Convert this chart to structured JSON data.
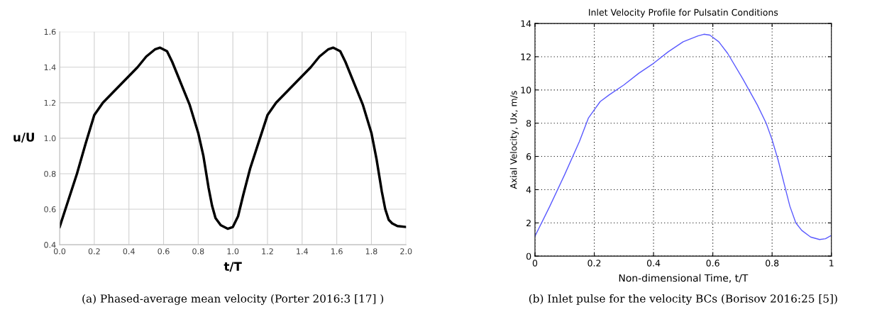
{
  "chart_data": [
    {
      "type": "line",
      "xlabel": "t/T",
      "ylabel": "u/U",
      "xlim": [
        0,
        2
      ],
      "ylim": [
        0.4,
        1.6
      ],
      "xticks": [
        {
          "value": 0,
          "label": "0.0"
        },
        0.2,
        0.4,
        0.6,
        0.8,
        {
          "value": 1,
          "label": "1.0"
        },
        1.2,
        1.4,
        1.6,
        1.8,
        {
          "value": 2,
          "label": "2.0"
        }
      ],
      "yticks": [
        0.4,
        0.6,
        0.8,
        {
          "value": 1,
          "label": "1.0"
        },
        1.2,
        1.4,
        1.6
      ],
      "grid": true,
      "series": [
        {
          "color": "#000000",
          "x": [
            0,
            0.05,
            0.1,
            0.15,
            0.2,
            0.25,
            0.3,
            0.35,
            0.4,
            0.45,
            0.5,
            0.55,
            0.58,
            0.62,
            0.65,
            0.7,
            0.75,
            0.8,
            0.83,
            0.86,
            0.88,
            0.9,
            0.93,
            0.97,
            1.0,
            1.03,
            1.06,
            1.1,
            1.15,
            1.2,
            1.25,
            1.3,
            1.35,
            1.4,
            1.45,
            1.5,
            1.55,
            1.58,
            1.62,
            1.65,
            1.7,
            1.75,
            1.8,
            1.83,
            1.86,
            1.88,
            1.9,
            1.92,
            1.95,
            2.0
          ],
          "values": [
            0.5,
            0.65,
            0.8,
            0.97,
            1.13,
            1.2,
            1.25,
            1.3,
            1.35,
            1.4,
            1.46,
            1.5,
            1.51,
            1.49,
            1.43,
            1.31,
            1.19,
            1.03,
            0.9,
            0.72,
            0.62,
            0.55,
            0.51,
            0.49,
            0.5,
            0.56,
            0.68,
            0.83,
            0.98,
            1.13,
            1.2,
            1.25,
            1.3,
            1.35,
            1.4,
            1.46,
            1.5,
            1.51,
            1.49,
            1.43,
            1.31,
            1.19,
            1.03,
            0.88,
            0.7,
            0.6,
            0.54,
            0.52,
            0.505,
            0.5
          ]
        }
      ],
      "annotations": [
        "(a) Phased-average mean velocity (Porter 2016:3 [17] )"
      ]
    },
    {
      "type": "line",
      "title": "Inlet Velocity Profile for Pulsatin Conditions",
      "xlabel": "Non-dimensional Time, t/T",
      "ylabel": "Axial Velocity, Ux, m/s",
      "xlim": [
        0,
        1
      ],
      "ylim": [
        0,
        14
      ],
      "xticks": [
        0,
        0.2,
        0.4,
        0.6,
        0.8,
        1
      ],
      "yticks": [
        0,
        2,
        4,
        6,
        8,
        10,
        12,
        14
      ],
      "grid": true,
      "series": [
        {
          "color": "#5a5aff",
          "x": [
            0,
            0.05,
            0.1,
            0.15,
            0.18,
            0.2,
            0.22,
            0.25,
            0.3,
            0.35,
            0.4,
            0.45,
            0.5,
            0.55,
            0.57,
            0.59,
            0.62,
            0.65,
            0.7,
            0.75,
            0.78,
            0.8,
            0.82,
            0.84,
            0.86,
            0.88,
            0.9,
            0.93,
            0.96,
            0.98,
            1.0
          ],
          "values": [
            1.2,
            3.0,
            4.9,
            6.9,
            8.3,
            8.8,
            9.3,
            9.7,
            10.3,
            11.0,
            11.6,
            12.3,
            12.9,
            13.25,
            13.35,
            13.3,
            12.9,
            12.2,
            10.7,
            9.1,
            8.0,
            7.0,
            5.8,
            4.4,
            3.0,
            2.0,
            1.55,
            1.15,
            1.0,
            1.05,
            1.25
          ]
        }
      ],
      "annotations": [
        "(b) Inlet pulse for the velocity BCs (Borisov 2016:25 [5])"
      ]
    }
  ]
}
